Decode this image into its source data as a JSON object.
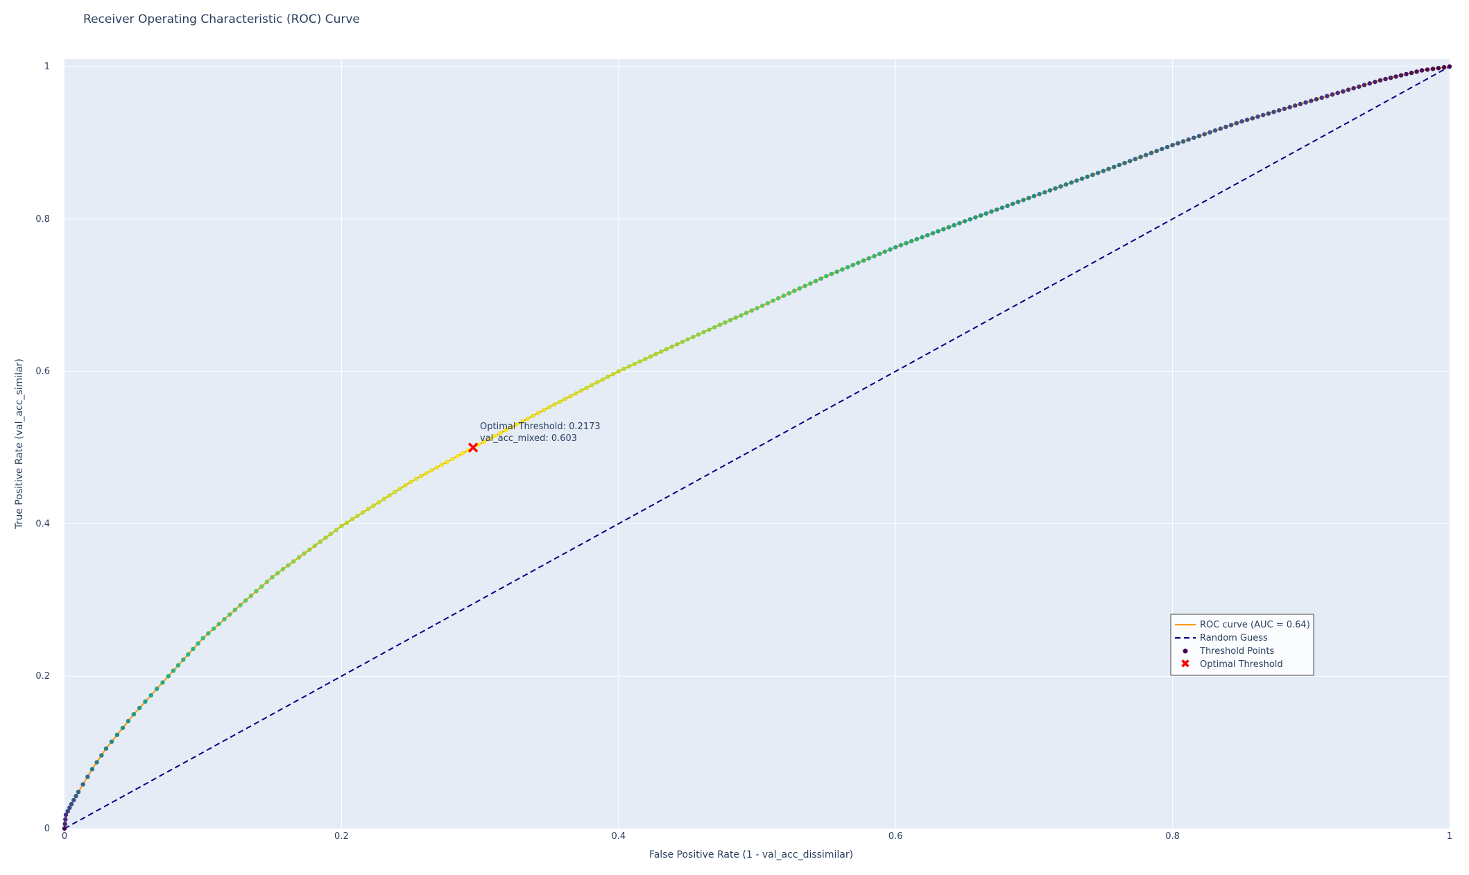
{
  "chart_data": {
    "type": "line",
    "title": "Receiver Operating Characteristic (ROC) Curve",
    "xlabel": "False Positive Rate (1 - val_acc_dissimilar)",
    "ylabel": "True Positive Rate (val_acc_similar)",
    "xlim": [
      0,
      1
    ],
    "ylim": [
      0,
      1
    ],
    "xticks": [
      0,
      0.2,
      0.4,
      0.6,
      0.8,
      1
    ],
    "yticks": [
      0,
      0.2,
      0.4,
      0.6,
      0.8,
      1
    ],
    "xtick_labels": [
      "0",
      "0.2",
      "0.4",
      "0.6",
      "0.8",
      "1"
    ],
    "ytick_labels": [
      "0",
      "0.2",
      "0.4",
      "0.6",
      "0.8",
      "1"
    ],
    "grid": true,
    "legend_position": "bottom-right",
    "colors": {
      "plot_bg": "#e5ecf6",
      "grid": "#ffffff",
      "roc_line": "#ff9900",
      "random_line": "#000080",
      "optimal_marker": "#ff0000"
    },
    "series": [
      {
        "name": "ROC curve (AUC = 0.64)",
        "kind": "line",
        "x": [
          0,
          0.001,
          0.005,
          0.01,
          0.02,
          0.03,
          0.05,
          0.075,
          0.1,
          0.15,
          0.2,
          0.25,
          0.295,
          0.35,
          0.4,
          0.45,
          0.5,
          0.55,
          0.6,
          0.65,
          0.7,
          0.75,
          0.8,
          0.85,
          0.9,
          0.95,
          0.98,
          1.0
        ],
        "y": [
          0,
          0.018,
          0.032,
          0.048,
          0.078,
          0.105,
          0.15,
          0.2,
          0.25,
          0.33,
          0.397,
          0.455,
          0.5,
          0.553,
          0.6,
          0.642,
          0.683,
          0.725,
          0.763,
          0.797,
          0.83,
          0.863,
          0.897,
          0.928,
          0.955,
          0.982,
          0.995,
          1.0
        ]
      },
      {
        "name": "Random Guess",
        "kind": "dashed-line",
        "x": [
          0,
          1
        ],
        "y": [
          0,
          1
        ]
      },
      {
        "name": "Threshold Points",
        "kind": "scatter",
        "colorscale": "viridis",
        "x": [
          0,
          0.001,
          0.005,
          0.01,
          0.02,
          0.03,
          0.05,
          0.075,
          0.1,
          0.15,
          0.2,
          0.25,
          0.295,
          0.35,
          0.4,
          0.45,
          0.5,
          0.55,
          0.6,
          0.65,
          0.7,
          0.75,
          0.8,
          0.85,
          0.9,
          0.95,
          0.98,
          1.0
        ],
        "y": [
          0,
          0.018,
          0.032,
          0.048,
          0.078,
          0.105,
          0.15,
          0.2,
          0.25,
          0.33,
          0.397,
          0.455,
          0.5,
          0.553,
          0.6,
          0.642,
          0.683,
          0.725,
          0.763,
          0.797,
          0.83,
          0.863,
          0.897,
          0.928,
          0.955,
          0.982,
          0.995,
          1.0
        ]
      },
      {
        "name": "Optimal Threshold",
        "kind": "marker-x",
        "x": [
          0.295
        ],
        "y": [
          0.5
        ]
      }
    ],
    "annotation": {
      "x": 0.295,
      "y": 0.5,
      "line1": "Optimal Threshold: 0.2173",
      "line2": "val_acc_mixed: 0.603"
    }
  }
}
